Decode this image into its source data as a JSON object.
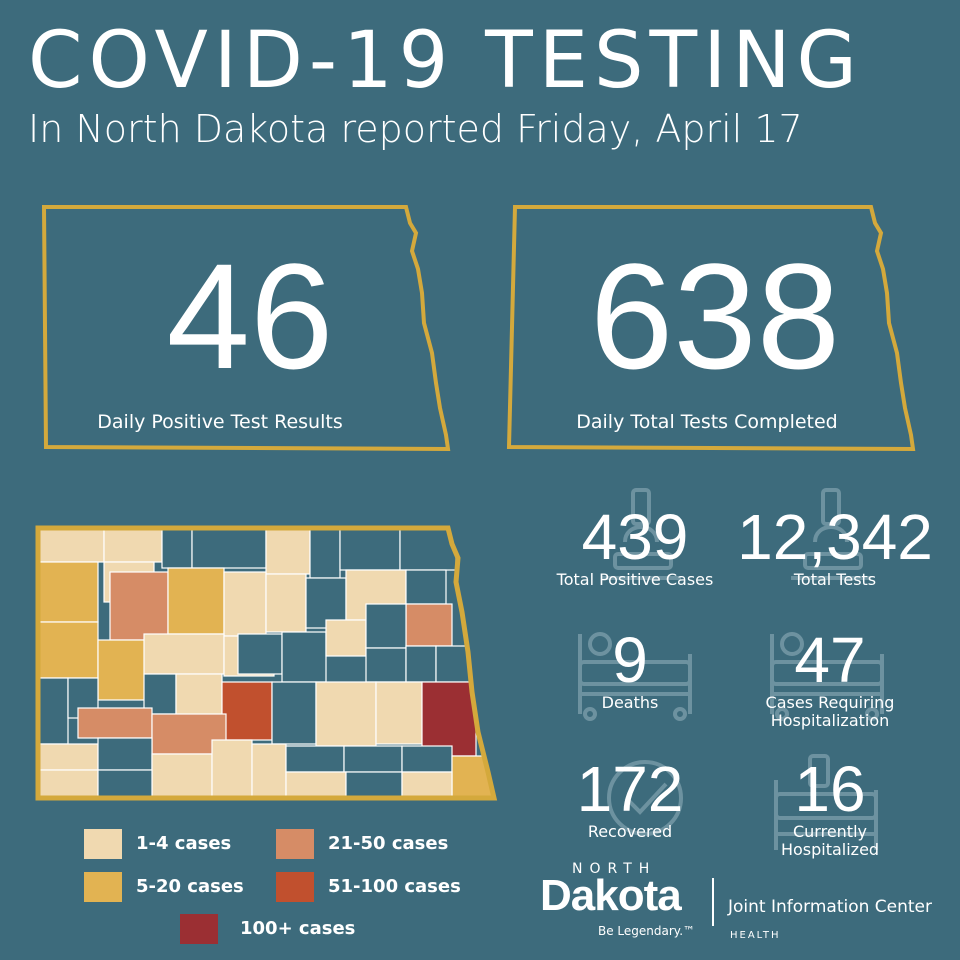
{
  "header": {
    "title": "COVID-19 TESTING",
    "subtitle": "In North Dakota reported Friday, April 17"
  },
  "cards": {
    "positive": {
      "value": "46",
      "label": "Daily Positive Test Results"
    },
    "total": {
      "value": "638",
      "label": "Daily Total Tests Completed"
    }
  },
  "stats": {
    "total_positive": {
      "value": "439",
      "label": "Total Positive Cases"
    },
    "total_tests": {
      "value": "12,342",
      "label": "Total Tests"
    },
    "deaths": {
      "value": "9",
      "label": "Deaths"
    },
    "hospitalization": {
      "value": "47",
      "label_line1": "Cases Requiring",
      "label_line2": "Hospitalization"
    },
    "recovered": {
      "value": "172",
      "label": "Recovered"
    },
    "hospitalized": {
      "value": "16",
      "label_line1": "Currently",
      "label_line2": "Hospitalized"
    }
  },
  "legend": {
    "items": [
      {
        "label": "1-4 cases",
        "color": "#f0d9b0"
      },
      {
        "label": "21-50 cases",
        "color": "#d68c66"
      },
      {
        "label": "5-20 cases",
        "color": "#e2b352"
      },
      {
        "label": "51-100 cases",
        "color": "#c1502e"
      },
      {
        "label": "100+ cases",
        "color": "#9b2f33"
      }
    ]
  },
  "branding": {
    "north": "NORTH",
    "dakota": "Dakota",
    "tagline": "Be Legendary.™",
    "jic": "Joint Information Center",
    "health": "HEALTH"
  },
  "colors": {
    "background": "#3d6b7c",
    "outline": "#d4a93c",
    "county_teal": "#3d6b7c"
  },
  "icons": [
    "microscope-icon",
    "hospital-bed-icon",
    "recovery-icon"
  ]
}
